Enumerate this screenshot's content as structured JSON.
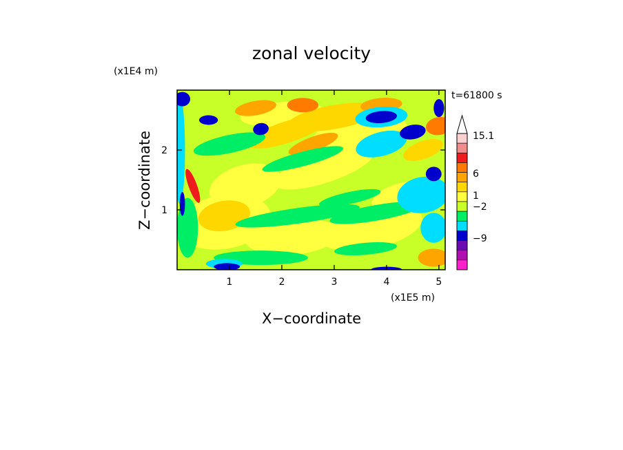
{
  "chart_data": {
    "type": "heatmap",
    "title": "zonal velocity",
    "xlabel": "X−coordinate",
    "ylabel": "Z−coordinate",
    "x_unit": "(x1E5 m)",
    "y_unit": "(x1E4 m)",
    "time_label": "t=61800 s",
    "xlim": [
      0,
      5.12
    ],
    "ylim": [
      0,
      3.0
    ],
    "x_ticks": [
      "1",
      "2",
      "3",
      "4",
      "5"
    ],
    "y_ticks": [
      "1",
      "2"
    ],
    "x_tick_values": [
      1,
      2,
      3,
      4,
      5
    ],
    "y_tick_values": [
      1,
      2
    ],
    "colorbar": {
      "labels": [
        "15.1",
        "6",
        "1",
        "−2",
        "−9"
      ],
      "label_values": [
        15.1,
        6,
        1,
        -2,
        -9
      ],
      "levels_top_to_bottom": [
        {
          "color": "#fbd0d0"
        },
        {
          "color": "#f08c8c"
        },
        {
          "color": "#ee1c1c"
        },
        {
          "color": "#ff7a00"
        },
        {
          "color": "#ffa500"
        },
        {
          "color": "#ffd700"
        },
        {
          "color": "#ffff40"
        },
        {
          "color": "#c8ff28"
        },
        {
          "color": "#00ee66"
        },
        {
          "color": "#00ddff"
        },
        {
          "color": "#0000cc"
        },
        {
          "color": "#6a0ab0"
        },
        {
          "color": "#b010b0"
        },
        {
          "color": "#ff22cc"
        }
      ],
      "extend_top": true
    },
    "field_colors": {
      "background": "#c8ff28",
      "strong_positive": "#ffff40",
      "positive": "#ffd700",
      "moderate": "#ffa500",
      "high": "#ff7a00",
      "very_high": "#ee1c1c",
      "neutral": "#00ee66",
      "weak_negative": "#00ddff",
      "negative": "#0000cc",
      "strong_negative": "#6a0ab0"
    }
  }
}
